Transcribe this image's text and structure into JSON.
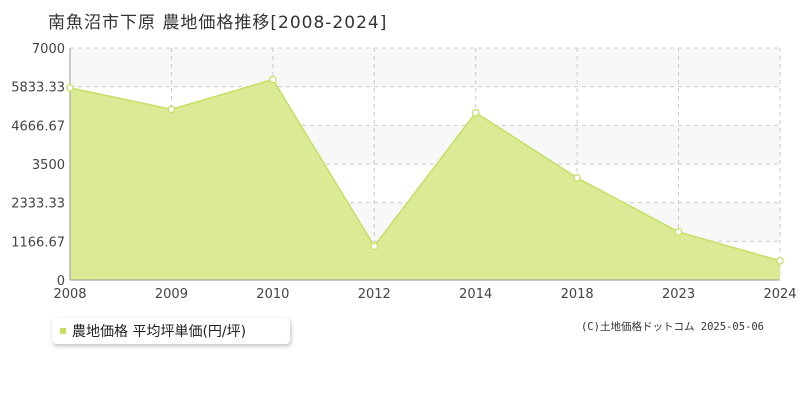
{
  "chart_data": {
    "type": "area",
    "title": "南魚沼市下原  農地価格推移[2008-2024]",
    "x": [
      "2008",
      "2009",
      "2010",
      "2012",
      "2014",
      "2018",
      "2023",
      "2024"
    ],
    "series": [
      {
        "name": "農地価格 平均坪単価(円/坪)",
        "values": [
          5800,
          5150,
          6050,
          1020,
          5050,
          3080,
          1450,
          580
        ]
      }
    ],
    "y_ticks": [
      "0",
      "1166.67",
      "2333.33",
      "3500",
      "4666.67",
      "5833.33",
      "7000"
    ],
    "ylim": [
      0,
      7000
    ],
    "grid": true,
    "legend_placement": "bottom-left",
    "colors": {
      "fill": "#dbeb95",
      "line": "#c3e064",
      "band": "#f8f8f8"
    }
  },
  "copyright": "(C)土地価格ドットコム 2025-05-06"
}
